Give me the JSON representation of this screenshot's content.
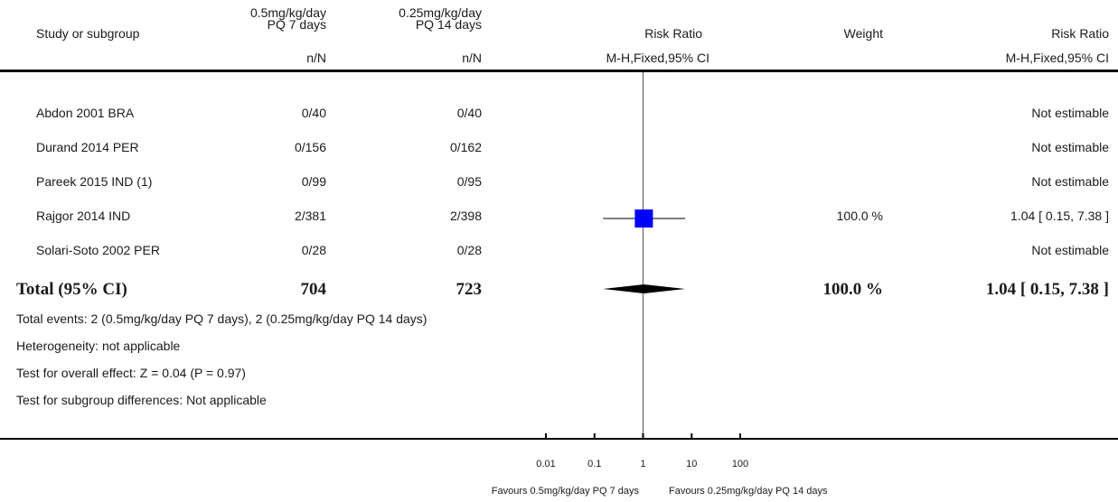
{
  "header": {
    "study_col": "Study or subgroup",
    "group1_line1": "0.5mg/kg/day",
    "group1_line2": "PQ 7 days",
    "group2_line1": "0.25mg/kg/day",
    "group2_line2": "PQ 14 days",
    "effect_col": "Risk Ratio",
    "weight_col": "Weight",
    "effect_col2": "Risk Ratio",
    "nN1": "n/N",
    "nN2": "n/N",
    "method1": "M-H,Fixed,95% CI",
    "method2": "M-H,Fixed,95% CI"
  },
  "chart_data": {
    "type": "forest",
    "x_scale": "log",
    "x_ticks": [
      "0.01",
      "0.1",
      "1",
      "10",
      "100"
    ],
    "xlim": [
      0.01,
      100
    ],
    "favours_left": "Favours 0.5mg/kg/day PQ 7 days",
    "favours_right": "Favours 0.25mg/kg/day PQ 14 days",
    "studies": [
      {
        "name": "Abdon 2001 BRA",
        "g1": "0/40",
        "g2": "0/40",
        "weight": "",
        "ci_text": "Not estimable",
        "rr": null,
        "lo": null,
        "hi": null
      },
      {
        "name": "Durand 2014 PER",
        "g1": "0/156",
        "g2": "0/162",
        "weight": "",
        "ci_text": "Not estimable",
        "rr": null,
        "lo": null,
        "hi": null
      },
      {
        "name": "Pareek 2015 IND (1)",
        "g1": "0/99",
        "g2": "0/95",
        "weight": "",
        "ci_text": "Not estimable",
        "rr": null,
        "lo": null,
        "hi": null
      },
      {
        "name": "Rajgor 2014 IND",
        "g1": "2/381",
        "g2": "2/398",
        "weight": "100.0 %",
        "ci_text": "1.04 [ 0.15, 7.38 ]",
        "rr": 1.04,
        "lo": 0.15,
        "hi": 7.38
      },
      {
        "name": "Solari-Soto 2002 PER",
        "g1": "0/28",
        "g2": "0/28",
        "weight": "",
        "ci_text": "Not estimable",
        "rr": null,
        "lo": null,
        "hi": null
      }
    ],
    "total": {
      "name": "Total (95% CI)",
      "g1": "704",
      "g2": "723",
      "weight": "100.0 %",
      "ci_text": "1.04 [ 0.15, 7.38 ]",
      "rr": 1.04,
      "lo": 0.15,
      "hi": 7.38
    }
  },
  "footer": {
    "events": "Total events: 2 (0.5mg/kg/day PQ 7 days), 2 (0.25mg/kg/day PQ 14 days)",
    "heterogeneity": "Heterogeneity: not applicable",
    "overall": "Test for overall effect: Z = 0.04 (P = 0.97)",
    "subgroup": "Test for subgroup differences: Not applicable"
  },
  "colors": {
    "box": "#0000ff",
    "diamond": "#000000",
    "line": "#000000"
  }
}
